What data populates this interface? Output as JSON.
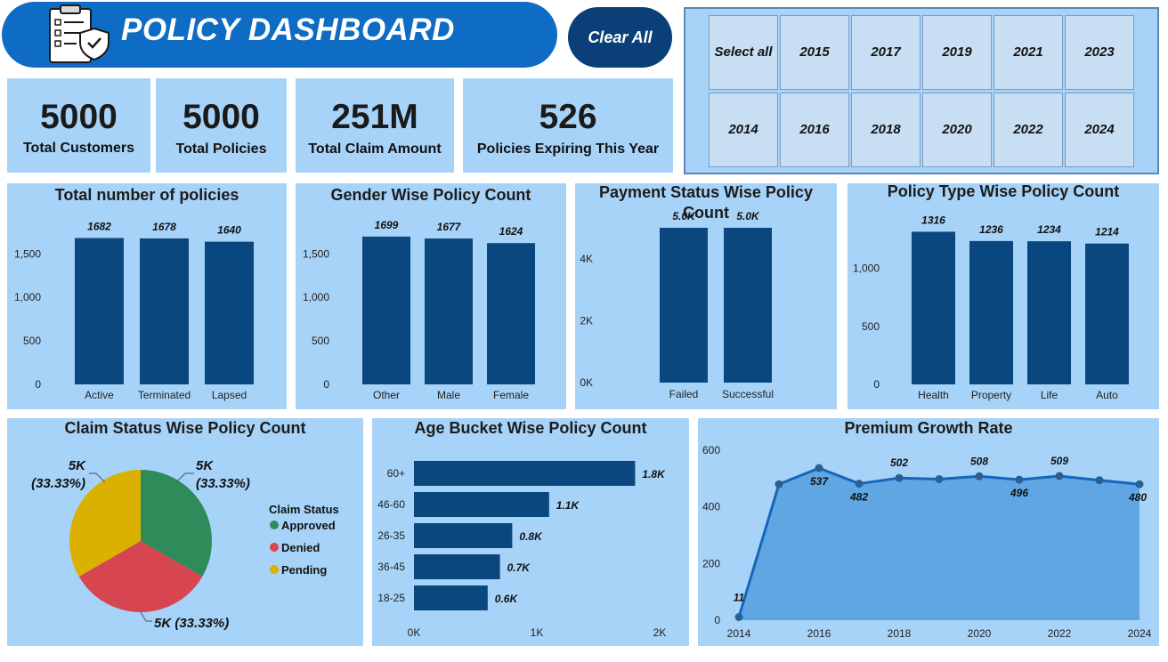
{
  "header": {
    "title": "POLICY DASHBOARD",
    "clear_all": "Clear All"
  },
  "year_slicer": {
    "row1": [
      "Select all",
      "2015",
      "2017",
      "2019",
      "2021",
      "2023"
    ],
    "row2": [
      "2014",
      "2016",
      "2018",
      "2020",
      "2022",
      "2024"
    ]
  },
  "kpis": [
    {
      "value": "5000",
      "label": "Total Customers"
    },
    {
      "value": "5000",
      "label": "Total Policies"
    },
    {
      "value": "251M",
      "label": "Total Claim Amount"
    },
    {
      "value": "526",
      "label": "Policies Expiring This Year"
    }
  ],
  "colors": {
    "bar": "#0b477f",
    "panel": "#a7d3f8",
    "approved": "#2e8b5a",
    "denied": "#d64550",
    "pending": "#dab100",
    "line": "#1666bb",
    "area": "#5fa6e3"
  },
  "chart_data": [
    {
      "id": "total_policies",
      "type": "bar",
      "title": "Total number of policies",
      "categories": [
        "Active",
        "Terminated",
        "Lapsed"
      ],
      "values": [
        1682,
        1678,
        1640
      ],
      "labels": [
        "1682",
        "1678",
        "1640"
      ],
      "yticks": [
        "0",
        "500",
        "1,000",
        "1,500"
      ],
      "ytick_values": [
        0,
        500,
        1000,
        1500
      ],
      "ylim": [
        0,
        1800
      ]
    },
    {
      "id": "gender",
      "type": "bar",
      "title": "Gender Wise Policy Count",
      "categories": [
        "Other",
        "Male",
        "Female"
      ],
      "values": [
        1699,
        1677,
        1624
      ],
      "labels": [
        "1699",
        "1677",
        "1624"
      ],
      "yticks": [
        "0",
        "500",
        "1,000",
        "1,500"
      ],
      "ytick_values": [
        0,
        500,
        1000,
        1500
      ],
      "ylim": [
        0,
        1800
      ]
    },
    {
      "id": "payment",
      "type": "bar",
      "title": "Payment Status Wise Policy Count",
      "categories": [
        "Failed",
        "Successful"
      ],
      "values": [
        5000,
        5000
      ],
      "labels": [
        "5.0K",
        "5.0K"
      ],
      "yticks": [
        "0K",
        "2K",
        "4K"
      ],
      "ytick_values": [
        0,
        2000,
        4000
      ],
      "ylim": [
        0,
        5000
      ]
    },
    {
      "id": "policy_type",
      "type": "bar",
      "title": "Policy Type Wise Policy Count",
      "categories": [
        "Health",
        "Property",
        "Life",
        "Auto"
      ],
      "values": [
        1316,
        1236,
        1234,
        1214
      ],
      "labels": [
        "1316",
        "1236",
        "1234",
        "1214"
      ],
      "yticks": [
        "0",
        "500",
        "1,000"
      ],
      "ytick_values": [
        0,
        500,
        1000
      ],
      "ylim": [
        0,
        1350
      ]
    },
    {
      "id": "claim_status",
      "type": "pie",
      "title": "Claim Status Wise Policy Count",
      "legend_title": "Claim Status",
      "slices": [
        {
          "name": "Approved",
          "value": 5000,
          "label": "5K",
          "pct": "(33.33%)"
        },
        {
          "name": "Denied",
          "value": 5000,
          "label": "5K (33.33%)"
        },
        {
          "name": "Pending",
          "value": 5000,
          "label": "5K",
          "pct": "(33.33%)"
        }
      ]
    },
    {
      "id": "age_bucket",
      "type": "bar",
      "title": "Age Bucket Wise Policy Count",
      "orientation": "horizontal",
      "categories": [
        "60+",
        "46-60",
        "26-35",
        "36-45",
        "18-25"
      ],
      "values": [
        1800,
        1100,
        800,
        700,
        600
      ],
      "labels": [
        "1.8K",
        "1.1K",
        "0.8K",
        "0.7K",
        "0.6K"
      ],
      "xticks": [
        "0K",
        "1K",
        "2K"
      ],
      "xtick_values": [
        0,
        1000,
        2000
      ],
      "xlim": [
        0,
        2000
      ]
    },
    {
      "id": "premium_growth",
      "type": "area",
      "title": "Premium Growth Rate",
      "x": [
        2014,
        2015,
        2016,
        2017,
        2018,
        2019,
        2020,
        2021,
        2022,
        2023,
        2024
      ],
      "y": [
        11,
        480,
        537,
        482,
        502,
        498,
        508,
        496,
        509,
        494,
        480
      ],
      "point_labels": [
        "11",
        "",
        "537",
        "482",
        "502",
        "",
        "508",
        "496",
        "509",
        "",
        "480"
      ],
      "xticks": [
        "2014",
        "2016",
        "2018",
        "2020",
        "2022",
        "2024"
      ],
      "xtick_values": [
        2014,
        2016,
        2018,
        2020,
        2022,
        2024
      ],
      "yticks": [
        "0",
        "200",
        "400",
        "600"
      ],
      "ytick_values": [
        0,
        200,
        400,
        600
      ],
      "ylim": [
        0,
        600
      ],
      "xlim": [
        2014,
        2024
      ]
    }
  ]
}
